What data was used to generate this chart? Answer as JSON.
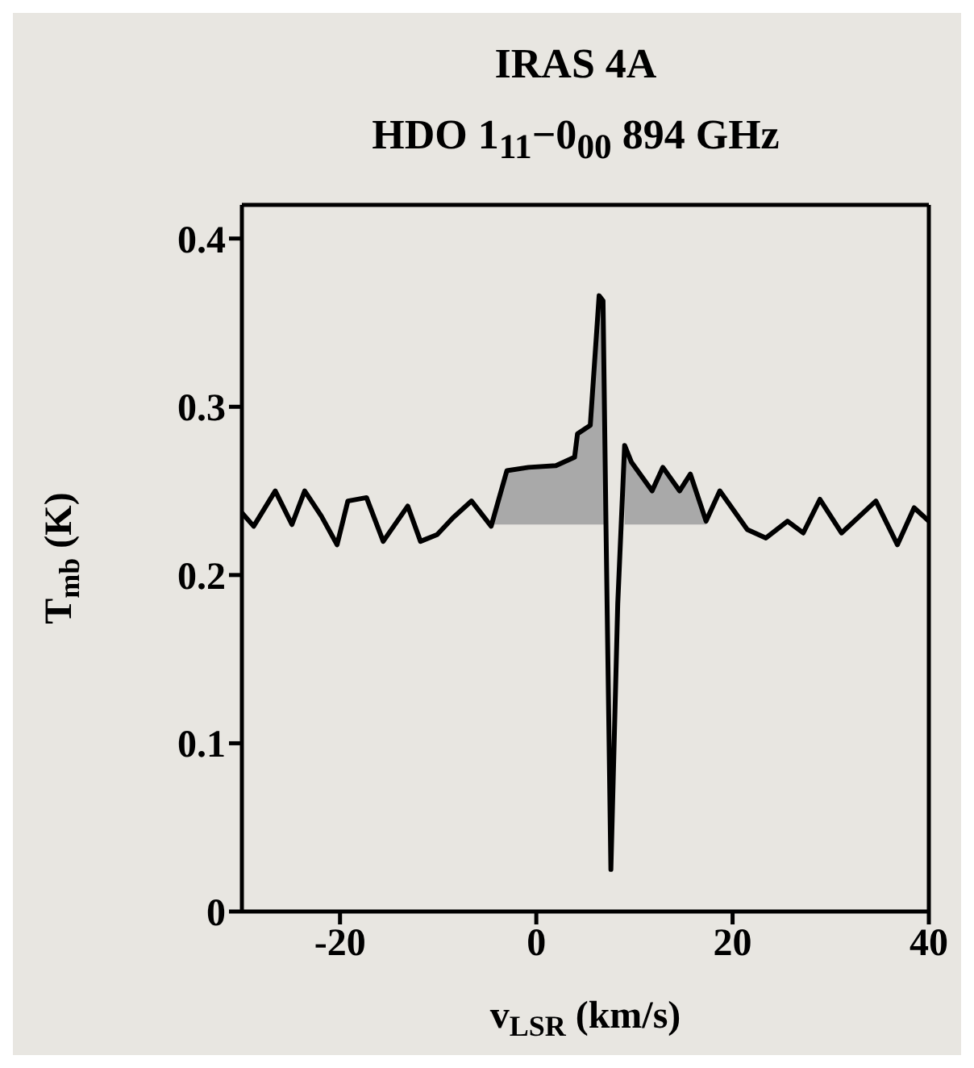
{
  "chart_data": {
    "type": "line",
    "title": "IRAS 4A",
    "subtitle": "HDO 1$_{11}$−0$_{00}$ 894 GHz",
    "xlabel": "v$_{LSR}$ (km/s)",
    "ylabel": "T$_{mb}$ (K)",
    "x": [
      -30,
      -28.8,
      -26.6,
      -24.9,
      -23.6,
      -21.9,
      -20.3,
      -19.2,
      -17.3,
      -15.6,
      -13.1,
      -11.8,
      -10.1,
      -8.5,
      -6.6,
      -4.6,
      -3.0,
      -0.8,
      2.0,
      3.9,
      4.2,
      5.5,
      6.4,
      6.8,
      7.1,
      7.6,
      8.3,
      9.0,
      9.7,
      11.8,
      12.9,
      14.6,
      15.7,
      17.3,
      18.7,
      21.5,
      23.4,
      25.6,
      27.2,
      28.9,
      31.1,
      34.6,
      36.8,
      38.5,
      40
    ],
    "series": [
      {
        "color": "#000000",
        "values": [
          0.237,
          0.229,
          0.25,
          0.23,
          0.25,
          0.235,
          0.218,
          0.244,
          0.246,
          0.22,
          0.241,
          0.22,
          0.224,
          0.234,
          0.244,
          0.229,
          0.262,
          0.264,
          0.265,
          0.27,
          0.284,
          0.289,
          0.366,
          0.363,
          0.23,
          0.025,
          0.183,
          0.277,
          0.267,
          0.25,
          0.264,
          0.25,
          0.26,
          0.232,
          0.25,
          0.227,
          0.222,
          0.232,
          0.225,
          0.245,
          0.225,
          0.244,
          0.218,
          0.24,
          0.232
        ],
        "lower": [
          null,
          null,
          null,
          null,
          null,
          null,
          null,
          null,
          null,
          null,
          null,
          null,
          null,
          null,
          null,
          0.23,
          0.23,
          0.23,
          0.23,
          0.23,
          0.23,
          0.23,
          0.23,
          0.23,
          0.23,
          null,
          null,
          0.23,
          0.23,
          0.23,
          0.23,
          0.23,
          0.23,
          0.23,
          null,
          null,
          null,
          null,
          null,
          null,
          null,
          null,
          null,
          null,
          null
        ],
        "upper": [
          null,
          null,
          null,
          null,
          null,
          null,
          null,
          null,
          null,
          null,
          null,
          null,
          null,
          null,
          null,
          0.229,
          0.262,
          0.264,
          0.265,
          0.27,
          0.284,
          0.289,
          0.366,
          0.363,
          0.23,
          null,
          null,
          0.277,
          0.267,
          0.25,
          0.264,
          0.25,
          0.26,
          0.232,
          null,
          null,
          null,
          null,
          null,
          null,
          null,
          null,
          null,
          null,
          null
        ]
      }
    ],
    "xlim": [
      -30,
      40
    ],
    "xticks": [
      -20,
      0,
      20,
      40
    ],
    "ylim": [
      0,
      0.42
    ],
    "yticks": [
      0,
      0.1,
      0.2,
      0.3,
      0.4
    ],
    "grid": false,
    "legend": false,
    "marker": "none",
    "line_style": "solid"
  }
}
